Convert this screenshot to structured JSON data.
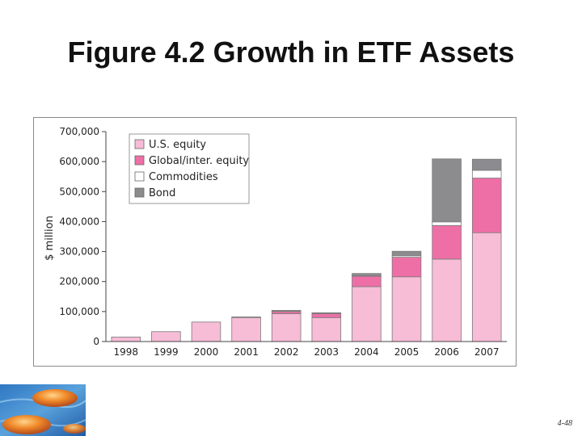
{
  "slide": {
    "title": "Figure 4.2 Growth in ETF Assets",
    "page_number": "4-48",
    "logo_icon": "stones-in-water-image"
  },
  "colors": {
    "us_equity": "#f7bcd6",
    "global_equity": "#ee6fa6",
    "commodities": "#ffffff",
    "bond": "#8c8c8f"
  },
  "chart_data": {
    "type": "bar",
    "stacked": true,
    "title": "",
    "xlabel": "",
    "ylabel": "$ million",
    "ylim": [
      0,
      700000
    ],
    "yticks": [
      0,
      100000,
      200000,
      300000,
      400000,
      500000,
      600000,
      700000
    ],
    "ytick_labels": [
      "0",
      "100,000",
      "200,000",
      "300,000",
      "400,000",
      "500,000",
      "600,000",
      "700,000"
    ],
    "categories": [
      "1998",
      "1999",
      "2000",
      "2001",
      "2002",
      "2003",
      "2004",
      "2005",
      "2006",
      "2007"
    ],
    "legend_position": "top-left",
    "grid": false,
    "series": [
      {
        "name": "U.S. equity",
        "color": "#f7bcd6",
        "values": [
          15000,
          33000,
          65000,
          80000,
          93000,
          80000,
          183000,
          216000,
          275000,
          363000
        ]
      },
      {
        "name": "Global/inter. equity",
        "color": "#ee6fa6",
        "values": [
          0,
          0,
          0,
          2000,
          7000,
          13000,
          35000,
          65000,
          112000,
          182000
        ]
      },
      {
        "name": "Commodities",
        "color": "#ffffff",
        "values": [
          0,
          0,
          0,
          0,
          0,
          0,
          1000,
          5000,
          12000,
          26000
        ]
      },
      {
        "name": "Bond",
        "color": "#8c8c8f",
        "values": [
          0,
          0,
          0,
          0,
          4000,
          3000,
          8000,
          15000,
          210000,
          37000
        ]
      }
    ]
  }
}
